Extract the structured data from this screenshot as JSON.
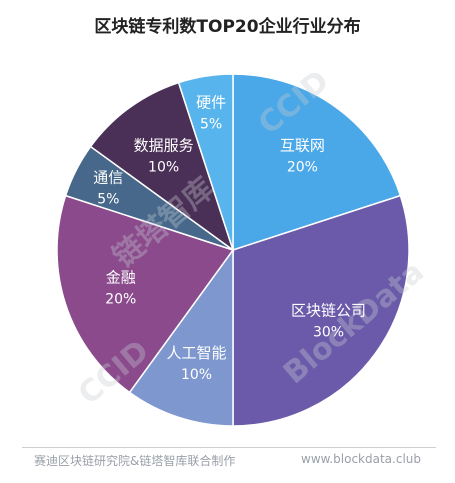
{
  "chart_data": {
    "type": "pie",
    "title": "区块链专利数TOP20企业行业分布",
    "slices": [
      {
        "label": "互联网",
        "value": 20,
        "value_label": "20%",
        "color": "#4aa7e8"
      },
      {
        "label": "区块链公司",
        "value": 30,
        "value_label": "30%",
        "color": "#6a5aa9"
      },
      {
        "label": "人工智能",
        "value": 10,
        "value_label": "10%",
        "color": "#7e97cf"
      },
      {
        "label": "金融",
        "value": 20,
        "value_label": "20%",
        "color": "#8a4a8c"
      },
      {
        "label": "通信",
        "value": 5,
        "value_label": "5%",
        "color": "#47688a"
      },
      {
        "label": "数据服务",
        "value": 10,
        "value_label": "10%",
        "color": "#4a2f57"
      },
      {
        "label": "硬件",
        "value": 5,
        "value_label": "5%",
        "color": "#58b4ec"
      }
    ]
  },
  "footer": {
    "source": "赛迪区块链研究院&链塔智库联合制作",
    "url": "www.blockdata.club"
  },
  "watermarks": [
    "CCID",
    "链塔智库",
    "BlockData"
  ]
}
